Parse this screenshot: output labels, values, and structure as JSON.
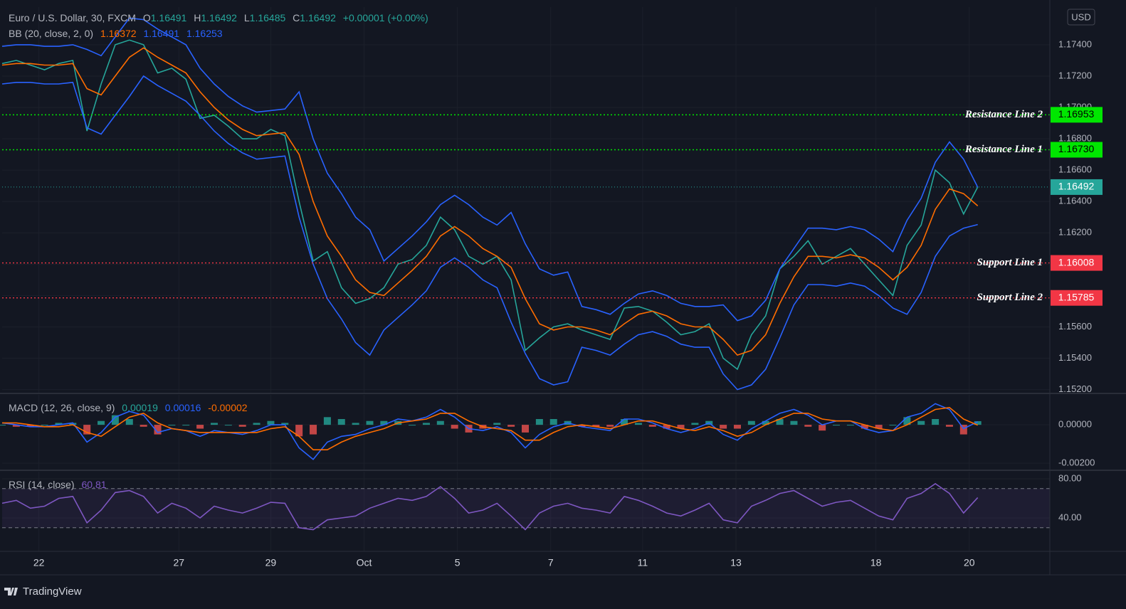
{
  "header": {
    "symbol": "Euro / U.S. Dollar, 30, FXCM",
    "ohlc": [
      {
        "key": "O",
        "value": "1.16491"
      },
      {
        "key": "H",
        "value": "1.16492"
      },
      {
        "key": "L",
        "value": "1.16485"
      },
      {
        "key": "C",
        "value": "1.16492"
      }
    ],
    "change": "+0.00001 (+0.00%)",
    "currency": "USD",
    "brand": "TradingView"
  },
  "chart_data": [
    {
      "type": "line",
      "name": "BB (20, close, 2, 0)",
      "xlim": [
        0,
        74.1
      ],
      "xticks": [
        {
          "value": 2.6,
          "label": "22"
        },
        {
          "value": 12.5,
          "label": "27"
        },
        {
          "value": 19,
          "label": "29"
        },
        {
          "value": 25.6,
          "label": "Oct"
        },
        {
          "value": 32.2,
          "label": "5"
        },
        {
          "value": 38.8,
          "label": "7"
        },
        {
          "value": 45.3,
          "label": "11"
        },
        {
          "value": 51.9,
          "label": "13"
        },
        {
          "value": 61.8,
          "label": "18"
        },
        {
          "value": 68.4,
          "label": "20"
        }
      ],
      "ylim": [
        1.1518,
        1.1764
      ],
      "yticks": [
        {
          "value": 1.152,
          "label": "1.15200"
        },
        {
          "value": 1.154,
          "label": "1.15400"
        },
        {
          "value": 1.156,
          "label": "1.15600"
        },
        {
          "value": 1.158,
          "label": "1.15800"
        },
        {
          "value": 1.16,
          "label": "1.16000"
        },
        {
          "value": 1.162,
          "label": "1.16200"
        },
        {
          "value": 1.164,
          "label": "1.16400"
        },
        {
          "value": 1.166,
          "label": "1.16600"
        },
        {
          "value": 1.168,
          "label": "1.16800"
        },
        {
          "value": 1.17,
          "label": "1.17000"
        },
        {
          "value": 1.172,
          "label": "1.17200"
        },
        {
          "value": 1.174,
          "label": "1.17400"
        }
      ],
      "grid": true,
      "series": [
        {
          "color": "#26a69a",
          "values": [
            1.1728,
            1.173,
            1.1727,
            1.1724,
            1.1728,
            1.173,
            1.1685,
            1.1715,
            1.174,
            1.1743,
            1.174,
            1.1722,
            1.1725,
            1.1718,
            1.1693,
            1.1695,
            1.1688,
            1.168,
            1.168,
            1.1686,
            1.1682,
            1.164,
            1.1602,
            1.1608,
            1.1585,
            1.1575,
            1.1578,
            1.1585,
            1.16,
            1.1603,
            1.1612,
            1.163,
            1.1622,
            1.1605,
            1.16,
            1.1605,
            1.159,
            1.1545,
            1.1553,
            1.156,
            1.1562,
            1.1558,
            1.1555,
            1.1552,
            1.1572,
            1.1573,
            1.157,
            1.1563,
            1.1555,
            1.1557,
            1.1562,
            1.154,
            1.1533,
            1.1555,
            1.1567,
            1.1597,
            1.1605,
            1.1615,
            1.16,
            1.1605,
            1.161,
            1.16,
            1.159,
            1.158,
            1.1612,
            1.1625,
            1.166,
            1.1652,
            1.1632,
            1.16492
          ]
        },
        {
          "color": "#ff6d00",
          "values": [
            1.1727,
            1.1728,
            1.1728,
            1.1727,
            1.1727,
            1.1728,
            1.1712,
            1.1708,
            1.172,
            1.1732,
            1.1738,
            1.1732,
            1.1727,
            1.1722,
            1.171,
            1.17,
            1.1692,
            1.1686,
            1.1682,
            1.1683,
            1.1684,
            1.167,
            1.164,
            1.1618,
            1.1605,
            1.159,
            1.1582,
            1.158,
            1.1588,
            1.1596,
            1.1605,
            1.1618,
            1.1624,
            1.1618,
            1.161,
            1.1605,
            1.1598,
            1.1578,
            1.1562,
            1.1558,
            1.156,
            1.156,
            1.1558,
            1.1555,
            1.1562,
            1.1568,
            1.157,
            1.1567,
            1.1562,
            1.156,
            1.156,
            1.1552,
            1.1542,
            1.1545,
            1.1555,
            1.1575,
            1.1592,
            1.1605,
            1.1605,
            1.1604,
            1.1606,
            1.1604,
            1.1598,
            1.159,
            1.1598,
            1.1612,
            1.1635,
            1.1648,
            1.1645,
            1.16372
          ]
        },
        {
          "color": "#2962ff",
          "values": [
            1.1739,
            1.174,
            1.174,
            1.1739,
            1.1739,
            1.174,
            1.1737,
            1.1733,
            1.1745,
            1.1757,
            1.1756,
            1.175,
            1.1745,
            1.174,
            1.1725,
            1.1715,
            1.1707,
            1.1701,
            1.1697,
            1.1698,
            1.1699,
            1.171,
            1.168,
            1.1658,
            1.1645,
            1.163,
            1.1622,
            1.1602,
            1.161,
            1.1618,
            1.1627,
            1.1638,
            1.1644,
            1.1638,
            1.163,
            1.1625,
            1.1633,
            1.1613,
            1.1597,
            1.1593,
            1.1595,
            1.1573,
            1.1571,
            1.1568,
            1.1575,
            1.1581,
            1.1583,
            1.158,
            1.1575,
            1.1573,
            1.1573,
            1.1574,
            1.1564,
            1.1567,
            1.1577,
            1.1597,
            1.161,
            1.1623,
            1.1623,
            1.1622,
            1.1624,
            1.1622,
            1.1616,
            1.1608,
            1.1628,
            1.1642,
            1.1665,
            1.1678,
            1.1667,
            1.16491
          ]
        },
        {
          "color": "#2962ff",
          "values": [
            1.1715,
            1.1716,
            1.1716,
            1.1715,
            1.1715,
            1.1716,
            1.1687,
            1.1683,
            1.1695,
            1.1707,
            1.172,
            1.1714,
            1.1709,
            1.1704,
            1.1695,
            1.1685,
            1.1677,
            1.1671,
            1.1667,
            1.1668,
            1.1669,
            1.163,
            1.16,
            1.1578,
            1.1565,
            1.155,
            1.1542,
            1.1558,
            1.1566,
            1.1574,
            1.1583,
            1.1598,
            1.1604,
            1.1598,
            1.159,
            1.1585,
            1.1563,
            1.1543,
            1.1527,
            1.1523,
            1.1525,
            1.1547,
            1.1545,
            1.1542,
            1.1549,
            1.1555,
            1.1557,
            1.1554,
            1.1549,
            1.1547,
            1.1547,
            1.153,
            1.152,
            1.1523,
            1.1533,
            1.1553,
            1.1574,
            1.1587,
            1.1587,
            1.1586,
            1.1588,
            1.1586,
            1.158,
            1.1572,
            1.1568,
            1.1582,
            1.1605,
            1.1618,
            1.1623,
            1.16253
          ]
        }
      ],
      "levels": [
        {
          "name": "Resistance Line 2",
          "value": 1.16953,
          "color": "#00e600"
        },
        {
          "name": "Resistance Line 1",
          "value": 1.1673,
          "label": "1.16730",
          "color": "#00e600"
        },
        {
          "name": "Support Line 1",
          "value": 1.16008,
          "color": "#f23645"
        },
        {
          "name": "Support Line 2",
          "value": 1.15785,
          "color": "#f23645"
        }
      ]
    },
    {
      "type": "macd",
      "name": "MACD (12, 26, close, 9)",
      "ylim": [
        -0.00233,
        0.00156
      ],
      "yticks": [
        {
          "value": 0,
          "label": "0.00000"
        },
        {
          "value": -0.002,
          "label": "-0.00200"
        }
      ],
      "series": [
        {
          "type": "bar",
          "color": "#26a69a",
          "negative_color": "#ef5350",
          "values": [
            0,
            -0.0001,
            -0.0001,
            0,
            0.0001,
            0.0001,
            -0.0005,
            0.0002,
            0.0005,
            0.0003,
            -0.0001,
            -0.0005,
            0,
            0,
            -0.0002,
            0.0001,
            0,
            -0.0001,
            0.0001,
            0.0002,
            0.0001,
            -0.0006,
            -0.0005,
            0.0004,
            0.0003,
            0.0001,
            0.0002,
            0.0002,
            0.0002,
            0,
            0.0001,
            0.0002,
            -0.0002,
            -0.0004,
            -0.0002,
            0.0001,
            -0.0001,
            -0.0004,
            0.0003,
            0.0003,
            0.0002,
            -0.0001,
            -0.0001,
            -0.0001,
            0.0003,
            0.0001,
            -0.0001,
            -0.0002,
            -0.0002,
            0.0001,
            0.0002,
            -0.0002,
            -0.0002,
            0.0002,
            0.0002,
            0.0003,
            0.0002,
            -0.0001,
            -0.0003,
            0,
            0,
            -0.0002,
            -0.0002,
            0,
            0.0004,
            0.0002,
            0.0003,
            -0.0001,
            -0.0005,
            0.00019
          ]
        },
        {
          "color": "#2962ff",
          "values": [
            0.0001,
            0,
            -0.0001,
            -0.0001,
            0,
            0.0001,
            -0.0009,
            -0.0004,
            0.0004,
            0.0007,
            0.0005,
            -0.0004,
            -0.0002,
            -0.0003,
            -0.0006,
            -0.0003,
            -0.0004,
            -0.0005,
            -0.0003,
            0,
            0,
            -0.0012,
            -0.0018,
            -0.0009,
            -0.0006,
            -0.0005,
            -0.0002,
            0,
            0.0003,
            0.0002,
            0.0004,
            0.0008,
            0.0004,
            -0.0002,
            -0.0003,
            -0.0001,
            -0.0004,
            -0.0012,
            -0.0005,
            -0.0001,
            0.0001,
            -0.0001,
            -0.0002,
            -0.0003,
            0.0003,
            0.0003,
            0.0001,
            -0.0002,
            -0.0004,
            -0.0002,
            0.0001,
            -0.0005,
            -0.0008,
            -0.0002,
            0.0002,
            0.0006,
            0.0008,
            0.0005,
            0,
            0.0002,
            0.0002,
            -0.0002,
            -0.0004,
            -0.0003,
            0.0004,
            0.0006,
            0.0011,
            0.0008,
            -0.0002,
            0.00016
          ]
        },
        {
          "color": "#ff6d00",
          "values": [
            0.0001,
            0.0001,
            0,
            -0.0001,
            -0.0001,
            0,
            -0.0004,
            -0.0006,
            -0.0001,
            0.0004,
            0.0006,
            0.0001,
            -0.0002,
            -0.0003,
            -0.0004,
            -0.0004,
            -0.0004,
            -0.0004,
            -0.0004,
            -0.0002,
            -0.0001,
            -0.0006,
            -0.0013,
            -0.0013,
            -0.0009,
            -0.0006,
            -0.0004,
            -0.0002,
            0.0001,
            0.0002,
            0.0003,
            0.0006,
            0.0006,
            0.0002,
            -0.0001,
            -0.0002,
            -0.0003,
            -0.0008,
            -0.0008,
            -0.0004,
            -0.0001,
            0,
            -0.0001,
            -0.0002,
            0,
            0.0002,
            0.0002,
            0,
            -0.0002,
            -0.0003,
            -0.0001,
            -0.0003,
            -0.0006,
            -0.0004,
            0,
            0.0003,
            0.0006,
            0.0006,
            0.0003,
            0.0002,
            0.0002,
            0,
            -0.0002,
            -0.0003,
            0,
            0.0004,
            0.0008,
            0.0009,
            0.0003,
            -2e-05
          ]
        }
      ]
    },
    {
      "type": "line",
      "name": "RSI (14, close)",
      "ylim": [
        5.8,
        87.3
      ],
      "yticks": [
        {
          "value": 80,
          "label": "80.00"
        },
        {
          "value": 40,
          "label": "40.00"
        }
      ],
      "bands": [
        30,
        70
      ],
      "series": [
        {
          "color": "#7e57c2",
          "values": [
            55,
            58,
            50,
            52,
            60,
            62,
            35,
            48,
            66,
            68,
            62,
            45,
            55,
            50,
            40,
            52,
            48,
            45,
            50,
            56,
            55,
            30,
            28,
            38,
            40,
            42,
            50,
            55,
            60,
            58,
            62,
            72,
            60,
            45,
            48,
            55,
            42,
            28,
            45,
            52,
            55,
            50,
            48,
            45,
            62,
            58,
            52,
            45,
            42,
            48,
            55,
            38,
            35,
            52,
            58,
            65,
            68,
            60,
            52,
            56,
            58,
            50,
            42,
            38,
            60,
            65,
            75,
            65,
            45,
            60.81
          ]
        }
      ]
    }
  ]
}
